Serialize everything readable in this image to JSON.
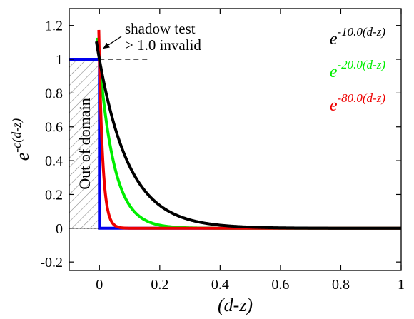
{
  "chart_data": {
    "type": "line",
    "xlabel": "(d-z)",
    "ylabel": {
      "base": "e",
      "sup": "-c(d-z)"
    },
    "xlim": [
      -0.1,
      1.0
    ],
    "ylim": [
      -0.25,
      1.3
    ],
    "grid": false,
    "legend_placement": "top-right",
    "x_ticks": [
      0,
      0.2,
      0.4,
      0.6,
      0.8,
      1
    ],
    "x_tick_labels": [
      "0",
      "0.2",
      "0.4",
      "0.6",
      "0.8",
      "1"
    ],
    "y_ticks": [
      -0.2,
      0,
      0.2,
      0.4,
      0.6,
      0.8,
      1,
      1.2
    ],
    "y_tick_labels": [
      "-0.2",
      "0",
      "0.2",
      "0.4",
      "0.6",
      "0.8",
      "1",
      "1.2"
    ],
    "series": [
      {
        "name": "e^-10.0(d-z)",
        "legend_base": "e",
        "legend_sup": "-10.0(d-z)",
        "c": 10,
        "color": "#000000",
        "x_start": -0.01
      },
      {
        "name": "e^-20.0(d-z)",
        "legend_base": "e",
        "legend_sup": "-20.0(d-z)",
        "c": 20,
        "color": "#00ee00",
        "x_start": -0.006
      },
      {
        "name": "e^-80.0(d-z)",
        "legend_base": "e",
        "legend_sup": "-80.0(d-z)",
        "c": 80,
        "color": "#ee0000",
        "x_start": -0.002
      }
    ],
    "step_series": {
      "color": "#0000ee",
      "points": [
        [
          -0.1,
          1
        ],
        [
          0,
          1
        ],
        [
          0,
          0
        ],
        [
          1,
          0
        ]
      ]
    },
    "hatched_region": {
      "x": [
        -0.1,
        0
      ],
      "y": [
        0,
        1
      ],
      "label": "Out of domain"
    },
    "dashed_line": {
      "x": [
        0,
        0.16
      ],
      "y": 1
    },
    "dotted_line": {
      "x": [
        -0.1,
        0
      ],
      "y": 0
    },
    "annotation": {
      "lines": [
        "shadow test",
        "> 1.0 invalid"
      ],
      "arrow_to": [
        0.0,
        1.08
      ]
    }
  },
  "colors": {
    "c10": "#000000",
    "c20": "#00ee00",
    "c80": "#ee0000",
    "step": "#0000ee",
    "hatch": "#8a8a8a"
  }
}
